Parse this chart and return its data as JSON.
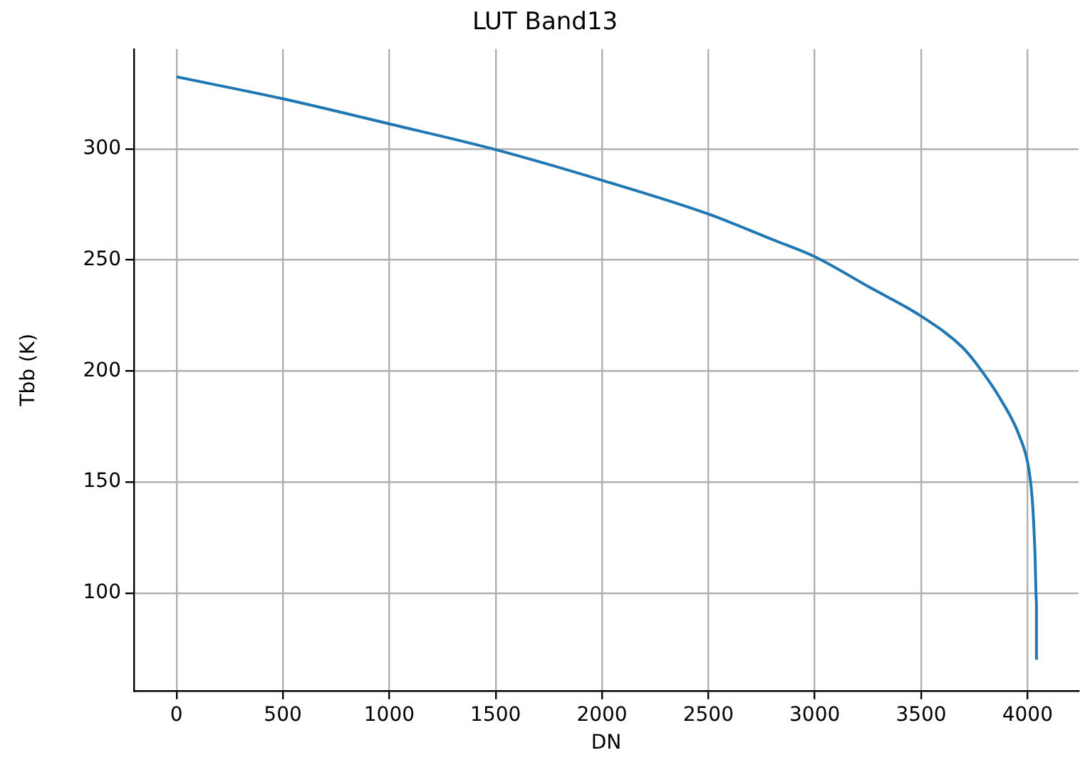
{
  "chart_data": {
    "type": "line",
    "title": "LUT Band13",
    "xlabel": "DN",
    "ylabel": "Tbb (K)",
    "x": [
      0,
      500,
      1000,
      1500,
      2000,
      2500,
      2812,
      3000,
      3254,
      3500,
      3697,
      3785,
      3874,
      3962,
      4007,
      4024,
      4035,
      4042,
      4042
    ],
    "series": [
      {
        "color": "#1f77b4",
        "values": [
          332.5,
          322.6,
          311.3,
          299.7,
          285.9,
          270.7,
          258.8,
          251.5,
          237.9,
          224.7,
          210.4,
          200,
          187.2,
          170.7,
          155.3,
          139.9,
          118,
          96,
          70
        ]
      }
    ],
    "xlim": [
      -200,
      4240
    ],
    "xticks": [
      0,
      500,
      1000,
      1500,
      2000,
      2500,
      3000,
      3500,
      4000
    ],
    "ylim": [
      56,
      345
    ],
    "yticks": [
      100,
      150,
      200,
      250,
      300
    ],
    "grid": true,
    "legend": false,
    "marker": "none",
    "line_style": "solid"
  }
}
